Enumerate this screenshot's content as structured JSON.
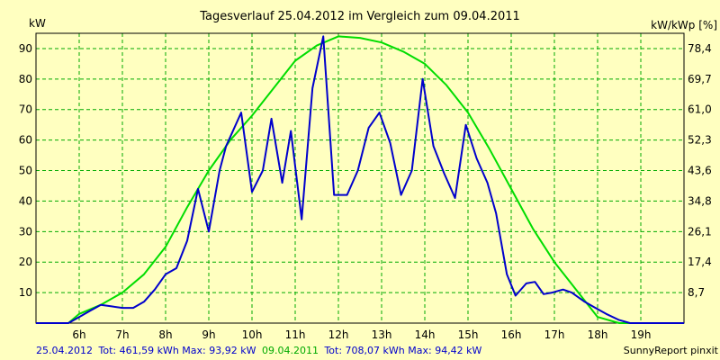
{
  "chart_data": {
    "type": "line",
    "title": "Tagesverlauf 25.04.2012 im Vergleich zum 09.04.2011",
    "ylabel_left": "kW",
    "ylabel_right": "kW/kWp [%]",
    "xlim": [
      5.0,
      20.0
    ],
    "ylim_left": [
      0,
      95
    ],
    "left_ticks": [
      "10",
      "20",
      "30",
      "40",
      "50",
      "60",
      "70",
      "80",
      "90"
    ],
    "left_tick_values": [
      10,
      20,
      30,
      40,
      50,
      60,
      70,
      80,
      90
    ],
    "right_ticks": [
      "8,7",
      "17,4",
      "26,1",
      "34,8",
      "43,6",
      "52,3",
      "61,0",
      "69,7",
      "78,4"
    ],
    "x_ticks": [
      "6h",
      "7h",
      "8h",
      "9h",
      "10h",
      "11h",
      "12h",
      "13h",
      "14h",
      "15h",
      "16h",
      "17h",
      "18h",
      "19h"
    ],
    "x_tick_values": [
      6,
      7,
      8,
      9,
      10,
      11,
      12,
      13,
      14,
      15,
      16,
      17,
      18,
      19
    ],
    "grid": true,
    "series": [
      {
        "name": "25.04.2012",
        "color": "#0000cc",
        "x": [
          5.0,
          5.5,
          5.75,
          6.0,
          6.25,
          6.5,
          6.75,
          7.0,
          7.25,
          7.5,
          7.75,
          8.0,
          8.25,
          8.5,
          8.75,
          9.0,
          9.25,
          9.4,
          9.75,
          10.0,
          10.25,
          10.45,
          10.7,
          10.9,
          11.15,
          11.4,
          11.65,
          11.9,
          12.2,
          12.45,
          12.7,
          12.95,
          13.2,
          13.45,
          13.7,
          13.95,
          14.2,
          14.45,
          14.7,
          14.95,
          15.2,
          15.45,
          15.65,
          15.9,
          16.1,
          16.35,
          16.55,
          16.75,
          16.95,
          17.2,
          17.4,
          17.7,
          17.95,
          18.2,
          18.5,
          18.75,
          18.95,
          20.0
        ],
        "y": [
          0,
          0,
          0,
          2,
          4,
          6,
          5.5,
          5,
          5,
          7,
          11,
          16,
          18,
          27,
          44,
          30,
          50,
          58,
          69,
          43,
          50,
          67,
          46,
          63,
          34,
          77,
          94,
          42,
          42,
          50,
          64,
          69,
          59,
          42,
          50,
          80,
          58,
          49,
          41,
          65,
          54,
          46,
          36,
          16,
          9,
          13,
          13.5,
          9.5,
          10,
          11,
          10,
          7,
          5,
          3,
          1,
          0,
          0,
          0
        ]
      },
      {
        "name": "09.04.2011",
        "color": "#00dd00",
        "x": [
          5.0,
          5.5,
          5.75,
          6.0,
          6.5,
          7.0,
          7.5,
          8.0,
          8.5,
          9.0,
          9.5,
          10.0,
          10.5,
          11.0,
          11.5,
          12.0,
          12.5,
          13.0,
          13.5,
          14.0,
          14.5,
          15.0,
          15.5,
          16.0,
          16.5,
          17.0,
          17.5,
          18.0,
          18.5,
          18.7,
          20.0
        ],
        "y": [
          0,
          0,
          0,
          3,
          6,
          10,
          16,
          25,
          38,
          50,
          60,
          68,
          77,
          86,
          91,
          94,
          93.5,
          92,
          89,
          85,
          78,
          69,
          57,
          44,
          31,
          20,
          11,
          2,
          0,
          0,
          0
        ]
      }
    ],
    "footer_left": {
      "series1_date": "25.04.2012",
      "series1_stats": "Tot: 461,59 kWh Max: 93,92 kW",
      "series2_date": "09.04.2011",
      "series2_stats": "Tot: 708,07 kWh Max: 94,42 kW"
    },
    "footer_right": "SunnyReport pinxit",
    "colors": {
      "background": "#ffffc0",
      "grid": "#00aa00",
      "axis": "#000000"
    }
  }
}
